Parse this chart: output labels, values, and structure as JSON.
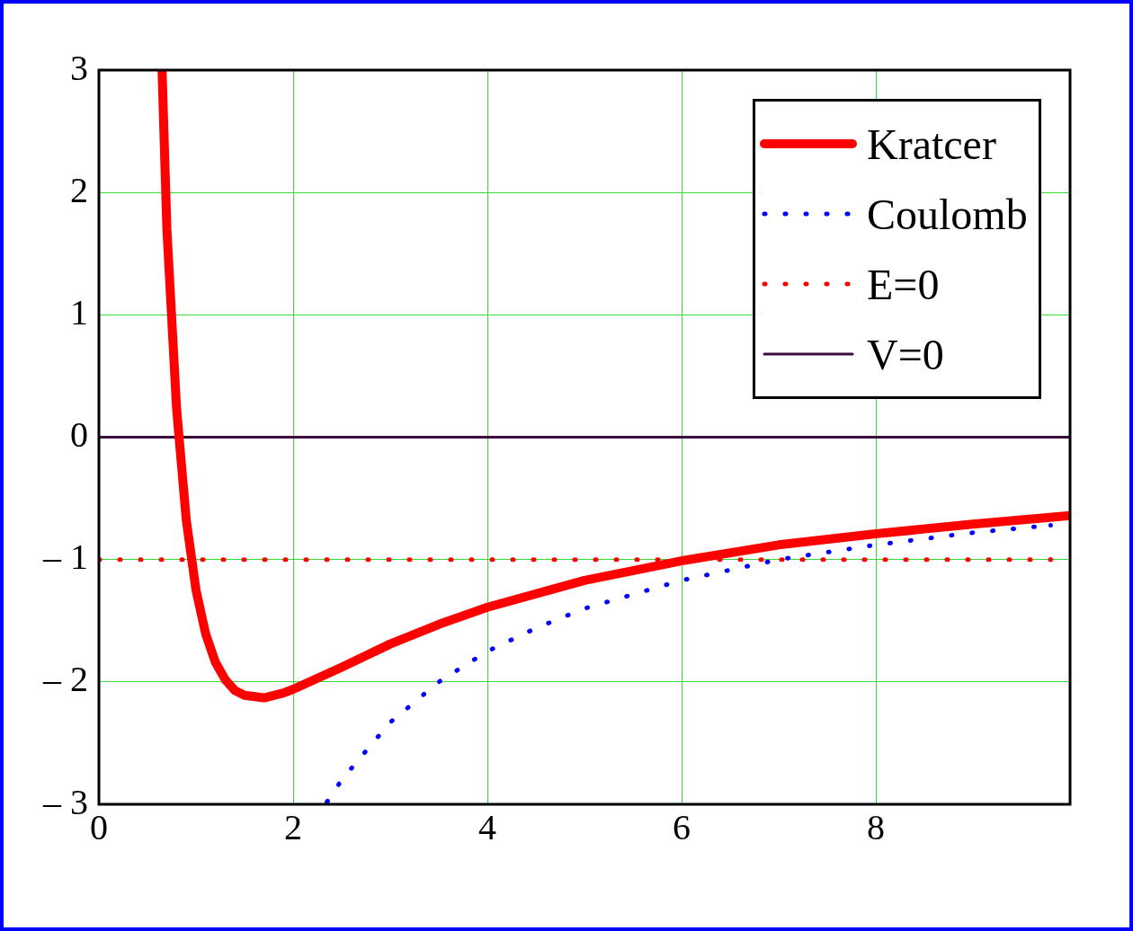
{
  "chart_data": {
    "type": "line",
    "xlim": [
      0,
      10
    ],
    "xticks": [
      0,
      2,
      4,
      6,
      8
    ],
    "ylim": [
      -3,
      3
    ],
    "yticks": [
      {
        "value": -3,
        "label": "– 3"
      },
      {
        "value": -2,
        "label": "– 2"
      },
      {
        "value": -1,
        "label": "– 1"
      },
      0,
      1,
      2,
      3
    ],
    "grid": true,
    "legend": "top right",
    "marker": "none",
    "series": [
      {
        "name": "Kratcer",
        "color": "#ff0000",
        "line_style": "solid",
        "x": [
          0.65,
          0.7,
          0.8,
          0.9,
          1.0,
          1.1,
          1.2,
          1.3,
          1.4,
          1.5,
          1.7,
          1.9,
          2.0,
          2.5,
          3,
          3.5,
          4,
          5,
          6,
          7,
          8,
          9,
          10
        ],
        "values": [
          3,
          1.7,
          0.23,
          -0.68,
          -1.25,
          -1.61,
          -1.84,
          -1.98,
          -2.07,
          -2.11,
          -2.13,
          -2.09,
          -2.06,
          -1.88,
          -1.69,
          -1.53,
          -1.39,
          -1.17,
          -1.01,
          -0.88,
          -0.79,
          -0.71,
          -0.64
        ]
      },
      {
        "name": "Coulomb",
        "color": "#0000ff",
        "line_style": "dotted",
        "x": [
          2.35,
          2.5,
          3,
          3.5,
          4,
          4.5,
          5,
          6,
          7,
          8,
          9,
          9.8
        ],
        "values": [
          -2.98,
          -2.8,
          -2.33,
          -2,
          -1.75,
          -1.56,
          -1.4,
          -1.17,
          -1,
          -0.88,
          -0.78,
          -0.72
        ]
      },
      {
        "name": "E=0",
        "color": "#ff0000",
        "line_style": "dotted",
        "x": [
          0,
          9.8
        ],
        "values": [
          -1,
          -1
        ]
      },
      {
        "name": "V=0",
        "color": "#3c0a3c",
        "line_style": "solid",
        "x": [
          0,
          10
        ],
        "values": [
          0,
          0
        ]
      }
    ]
  }
}
